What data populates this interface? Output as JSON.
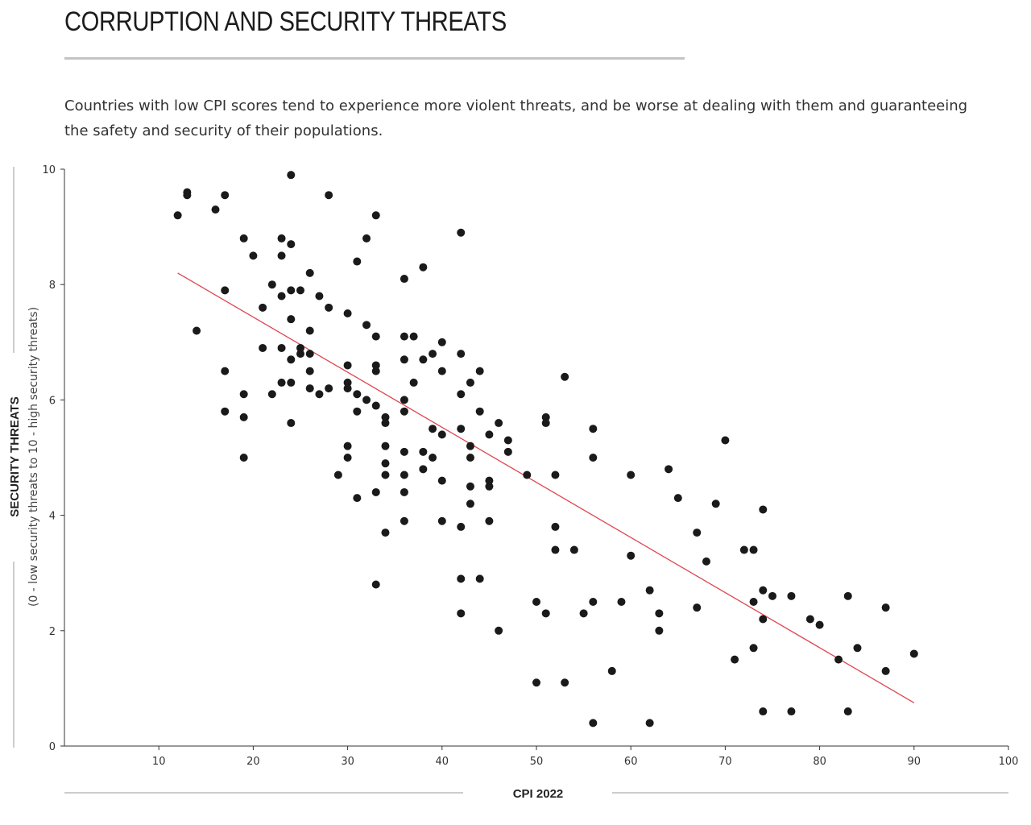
{
  "header": {
    "title": "CORRUPTION AND SECURITY THREATS",
    "subtitle": "Countries with low CPI scores tend to experience more violent threats, and be worse at dealing with them and guaranteeing the safety and security of their populations."
  },
  "chart_data": {
    "type": "scatter",
    "xlabel": "CPI 2022",
    "ylabel": "SECURITY THREATS",
    "ylabel_sub": "(0 - low security threats to 10 - high security threats)",
    "xlim": [
      0,
      100
    ],
    "ylim": [
      0,
      10
    ],
    "xticks": [
      10,
      20,
      30,
      40,
      50,
      60,
      70,
      80,
      90,
      100
    ],
    "yticks": [
      0,
      2,
      4,
      6,
      8,
      10
    ],
    "grid": false,
    "colors": {
      "points": "#1a1a1a",
      "trendline": "#e0454f",
      "axis": "#333333"
    },
    "trendline": {
      "x": [
        12,
        90
      ],
      "y": [
        8.2,
        0.75
      ]
    },
    "points": [
      [
        12,
        9.2
      ],
      [
        13,
        9.6
      ],
      [
        13,
        9.55
      ],
      [
        16,
        9.3
      ],
      [
        17,
        9.55
      ],
      [
        24,
        9.9
      ],
      [
        28,
        9.55
      ],
      [
        14,
        7.2
      ],
      [
        17,
        7.9
      ],
      [
        17,
        6.5
      ],
      [
        17,
        5.8
      ],
      [
        19,
        8.8
      ],
      [
        19,
        6.1
      ],
      [
        19,
        5.7
      ],
      [
        19,
        5.0
      ],
      [
        20,
        8.5
      ],
      [
        21,
        7.6
      ],
      [
        21,
        6.9
      ],
      [
        22,
        8.0
      ],
      [
        22,
        6.1
      ],
      [
        23,
        8.8
      ],
      [
        23,
        8.5
      ],
      [
        23,
        7.8
      ],
      [
        23,
        6.9
      ],
      [
        23,
        6.3
      ],
      [
        24,
        8.7
      ],
      [
        24,
        7.9
      ],
      [
        24,
        7.4
      ],
      [
        24,
        6.7
      ],
      [
        24,
        6.3
      ],
      [
        24,
        5.6
      ],
      [
        25,
        7.9
      ],
      [
        25,
        6.9
      ],
      [
        25,
        6.8
      ],
      [
        26,
        8.2
      ],
      [
        26,
        7.2
      ],
      [
        26,
        6.8
      ],
      [
        26,
        6.5
      ],
      [
        26,
        6.2
      ],
      [
        27,
        7.8
      ],
      [
        27,
        6.1
      ],
      [
        28,
        7.6
      ],
      [
        28,
        6.2
      ],
      [
        29,
        4.7
      ],
      [
        30,
        7.5
      ],
      [
        30,
        6.6
      ],
      [
        30,
        6.3
      ],
      [
        30,
        6.2
      ],
      [
        30,
        5.2
      ],
      [
        30,
        5.0
      ],
      [
        31,
        8.4
      ],
      [
        31,
        6.1
      ],
      [
        31,
        5.8
      ],
      [
        31,
        4.3
      ],
      [
        32,
        8.8
      ],
      [
        32,
        7.3
      ],
      [
        32,
        6.0
      ],
      [
        33,
        9.2
      ],
      [
        33,
        7.1
      ],
      [
        33,
        6.6
      ],
      [
        33,
        6.5
      ],
      [
        33,
        5.9
      ],
      [
        33,
        4.4
      ],
      [
        33,
        2.8
      ],
      [
        34,
        5.7
      ],
      [
        34,
        5.6
      ],
      [
        34,
        5.2
      ],
      [
        34,
        4.9
      ],
      [
        34,
        4.7
      ],
      [
        34,
        3.7
      ],
      [
        36,
        8.1
      ],
      [
        36,
        7.1
      ],
      [
        36,
        6.7
      ],
      [
        36,
        6.0
      ],
      [
        36,
        5.8
      ],
      [
        36,
        5.1
      ],
      [
        36,
        4.7
      ],
      [
        36,
        4.4
      ],
      [
        36,
        3.9
      ],
      [
        37,
        7.1
      ],
      [
        37,
        6.3
      ],
      [
        38,
        8.3
      ],
      [
        38,
        6.7
      ],
      [
        38,
        5.1
      ],
      [
        38,
        4.8
      ],
      [
        39,
        6.8
      ],
      [
        39,
        5.5
      ],
      [
        39,
        5.0
      ],
      [
        40,
        7.0
      ],
      [
        40,
        6.5
      ],
      [
        40,
        5.4
      ],
      [
        40,
        4.6
      ],
      [
        40,
        3.9
      ],
      [
        42,
        8.9
      ],
      [
        42,
        6.8
      ],
      [
        42,
        6.1
      ],
      [
        42,
        5.5
      ],
      [
        42,
        3.8
      ],
      [
        42,
        2.9
      ],
      [
        42,
        2.3
      ],
      [
        43,
        6.3
      ],
      [
        43,
        5.2
      ],
      [
        43,
        5.0
      ],
      [
        43,
        4.5
      ],
      [
        43,
        4.2
      ],
      [
        44,
        6.5
      ],
      [
        44,
        5.8
      ],
      [
        44,
        2.9
      ],
      [
        45,
        5.4
      ],
      [
        45,
        4.6
      ],
      [
        45,
        4.5
      ],
      [
        45,
        3.9
      ],
      [
        46,
        5.6
      ],
      [
        46,
        2.0
      ],
      [
        47,
        5.3
      ],
      [
        47,
        5.1
      ],
      [
        49,
        4.7
      ],
      [
        50,
        2.5
      ],
      [
        50,
        1.1
      ],
      [
        51,
        5.7
      ],
      [
        51,
        5.6
      ],
      [
        51,
        2.3
      ],
      [
        52,
        4.7
      ],
      [
        52,
        3.8
      ],
      [
        52,
        3.4
      ],
      [
        53,
        6.4
      ],
      [
        53,
        1.1
      ],
      [
        54,
        3.4
      ],
      [
        55,
        2.3
      ],
      [
        56,
        5.5
      ],
      [
        56,
        5.0
      ],
      [
        56,
        2.5
      ],
      [
        56,
        0.4
      ],
      [
        58,
        1.3
      ],
      [
        59,
        2.5
      ],
      [
        60,
        4.7
      ],
      [
        60,
        3.3
      ],
      [
        62,
        2.7
      ],
      [
        62,
        0.4
      ],
      [
        63,
        2.3
      ],
      [
        63,
        2.0
      ],
      [
        64,
        4.8
      ],
      [
        65,
        4.3
      ],
      [
        67,
        3.7
      ],
      [
        67,
        2.4
      ],
      [
        68,
        3.2
      ],
      [
        69,
        4.2
      ],
      [
        70,
        5.3
      ],
      [
        71,
        1.5
      ],
      [
        72,
        3.4
      ],
      [
        73,
        3.4
      ],
      [
        73,
        2.5
      ],
      [
        73,
        1.7
      ],
      [
        74,
        4.1
      ],
      [
        74,
        2.7
      ],
      [
        74,
        2.2
      ],
      [
        74,
        0.6
      ],
      [
        75,
        2.6
      ],
      [
        77,
        2.6
      ],
      [
        77,
        0.6
      ],
      [
        79,
        2.2
      ],
      [
        80,
        2.1
      ],
      [
        82,
        1.5
      ],
      [
        83,
        2.6
      ],
      [
        83,
        0.6
      ],
      [
        84,
        1.7
      ],
      [
        87,
        2.4
      ],
      [
        87,
        1.3
      ],
      [
        90,
        1.6
      ]
    ]
  }
}
